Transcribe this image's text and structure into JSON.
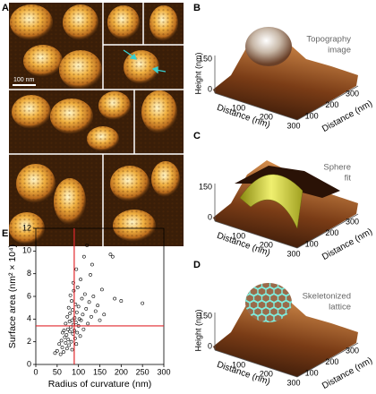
{
  "figure": {
    "panel_a": {
      "label": "A",
      "scale_bar": "100 nm"
    },
    "panel_e_label": "E",
    "plots": [
      {
        "label": "B",
        "caption": [
          "Topography",
          "image"
        ],
        "height_label": "Height (nm)",
        "height_ticks": [
          150,
          0
        ],
        "front_label": "Distance (nm)",
        "front_ticks": [
          100,
          200,
          300
        ],
        "side_label": "Distance (nm)",
        "side_ticks": [
          100,
          200,
          300
        ]
      },
      {
        "label": "C",
        "caption": [
          "Sphere",
          "fit"
        ],
        "height_ticks": [
          150,
          0
        ],
        "front_label": "Distance (nm)",
        "front_ticks": [
          100,
          200,
          300
        ],
        "side_label": "Distance (nm)",
        "side_ticks": [
          100,
          200,
          300
        ]
      },
      {
        "label": "D",
        "caption": [
          "Skeletonized",
          "lattice"
        ],
        "height_label": "Height (nm)",
        "height_ticks": [
          150,
          0
        ],
        "front_label": "Distance (nm)",
        "front_ticks": [
          100,
          200,
          300
        ],
        "side_label": "Distance (nm)",
        "side_ticks": [
          100,
          200,
          300
        ]
      }
    ]
  },
  "chart_data": {
    "type": "scatter",
    "xlabel": "Radius of curvature (nm)",
    "ylabel": "Surface area (nm² × 10⁴)",
    "x": [
      50,
      55,
      58,
      60,
      62,
      63,
      65,
      66,
      68,
      70,
      70,
      72,
      73,
      74,
      75,
      76,
      77,
      78,
      79,
      80,
      80,
      81,
      82,
      83,
      84,
      85,
      85,
      86,
      87,
      88,
      88,
      89,
      90,
      91,
      92,
      93,
      94,
      95,
      96,
      97,
      98,
      100,
      100,
      102,
      104,
      105,
      106,
      108,
      110,
      112,
      113,
      115,
      118,
      120,
      122,
      125,
      128,
      130,
      132,
      135,
      140,
      145,
      150,
      155,
      160,
      175,
      180,
      185,
      200,
      250,
      45,
      95
    ],
    "values": [
      1.2,
      1.8,
      0.9,
      2.1,
      1.5,
      2.8,
      1.1,
      3.0,
      2.4,
      1.9,
      3.6,
      2.6,
      1.4,
      4.2,
      3.1,
      2.2,
      5.0,
      1.7,
      3.8,
      2.9,
      4.5,
      6.1,
      3.3,
      2.0,
      5.6,
      3.9,
      1.3,
      4.8,
      2.7,
      3.5,
      7.2,
      6.5,
      3.0,
      4.1,
      2.3,
      5.3,
      3.7,
      8.4,
      4.6,
      2.8,
      6.8,
      3.4,
      5.1,
      4.0,
      2.5,
      7.5,
      3.9,
      5.8,
      4.4,
      3.1,
      9.5,
      6.2,
      4.9,
      10.5,
      3.6,
      5.5,
      7.9,
      4.2,
      8.8,
      6.0,
      4.7,
      5.2,
      3.9,
      6.6,
      4.4,
      9.7,
      9.5,
      5.8,
      5.6,
      5.4,
      1.0,
      1.8
    ],
    "color": "#000000",
    "xlim": [
      0,
      300
    ],
    "xticks": [
      0,
      50,
      100,
      150,
      200,
      250,
      300
    ],
    "ylim": [
      0,
      12
    ],
    "yticks": [
      0,
      2,
      4,
      6,
      8,
      10,
      12
    ],
    "reference_lines": {
      "x": 90,
      "y": 3.4,
      "color": "#e0282e"
    }
  }
}
